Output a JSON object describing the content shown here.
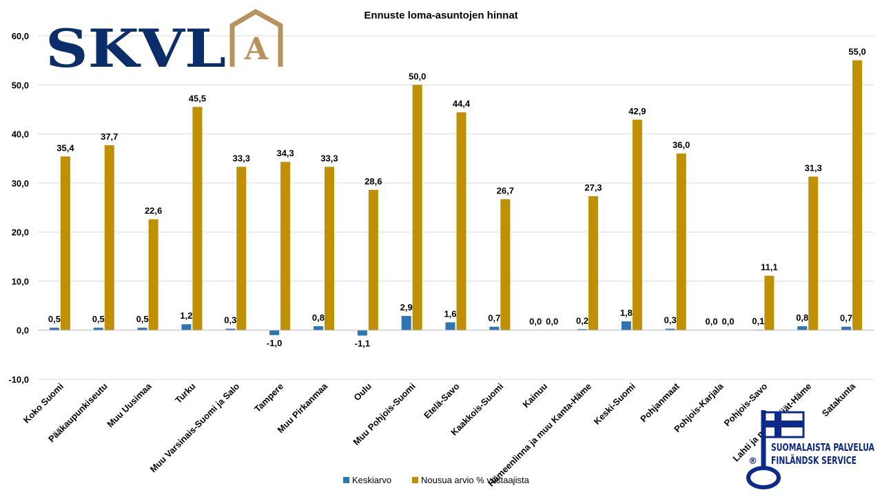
{
  "logo": {
    "text": "SKVL",
    "mark_letter": "A",
    "text_color": "#0b2e6b",
    "mark_color": "#b8925a"
  },
  "brand": {
    "line1": "SUOMALAISTA PALVELUA",
    "line2": "FINLÄNDSK SERVICE",
    "registered": "®",
    "color": "#0c2a8c"
  },
  "colors": {
    "series1": "#2e75b6",
    "series2": "#bf9000",
    "grid": "#d9d9d9",
    "text": "#000000"
  },
  "chart_data": {
    "type": "bar",
    "title": "Ennuste loma-asuntojen hinnat",
    "xlabel": "",
    "ylabel": "",
    "ylim": [
      -10,
      60
    ],
    "yticks": [
      -10,
      0,
      10,
      20,
      30,
      40,
      50,
      60
    ],
    "ytick_labels": [
      "-10,0",
      "0,0",
      "10,0",
      "20,0",
      "30,0",
      "40,0",
      "50,0",
      "60,0"
    ],
    "grid": true,
    "legend_position": "bottom",
    "categories": [
      "Koko Suomi",
      "Pääkaupunkiseutu",
      "Muu Uusimaa",
      "Turku",
      "Muu Varsinais-Suomi ja Salo",
      "Tampere",
      "Muu Pirkanmaa",
      "Oulu",
      "Muu Pohjois-Suomi",
      "Etelä-Savo",
      "Kaakkois-Suomi",
      "Kainuu",
      "Hämeenlinna ja muu Kanta-Häme",
      "Keski-Suomi",
      "Pohjanmaat",
      "Pohjois-Karjala",
      "Pohjois-Savo",
      "Lahti ja muu Päijät-Häme",
      "Satakunta"
    ],
    "series": [
      {
        "name": "Keskiarvo",
        "values": [
          0.5,
          0.5,
          0.5,
          1.2,
          0.3,
          -1.0,
          0.8,
          -1.1,
          2.9,
          1.6,
          0.7,
          0.0,
          0.2,
          1.8,
          0.3,
          0.0,
          0.1,
          0.8,
          0.7
        ],
        "labels": [
          "0,5",
          "0,5",
          "0,5",
          "1,2",
          "0,3",
          "-1,0",
          "0,8",
          "-1,1",
          "2,9",
          "1,6",
          "0,7",
          "0,0",
          "0,2",
          "1,8",
          "0,3",
          "0,0",
          "0,1",
          "0,8",
          "0,7"
        ]
      },
      {
        "name": "Nousua arvio % vastaajista",
        "values": [
          35.4,
          37.7,
          22.6,
          45.5,
          33.3,
          34.3,
          33.3,
          28.6,
          50.0,
          44.4,
          26.7,
          0.0,
          27.3,
          42.9,
          36.0,
          0.0,
          11.1,
          31.3,
          55.0
        ],
        "labels": [
          "35,4",
          "37,7",
          "22,6",
          "45,5",
          "33,3",
          "34,3",
          "33,3",
          "28,6",
          "50,0",
          "44,4",
          "26,7",
          "0,0",
          "27,3",
          "42,9",
          "36,0",
          "0,0",
          "11,1",
          "31,3",
          "55,0"
        ]
      }
    ]
  }
}
